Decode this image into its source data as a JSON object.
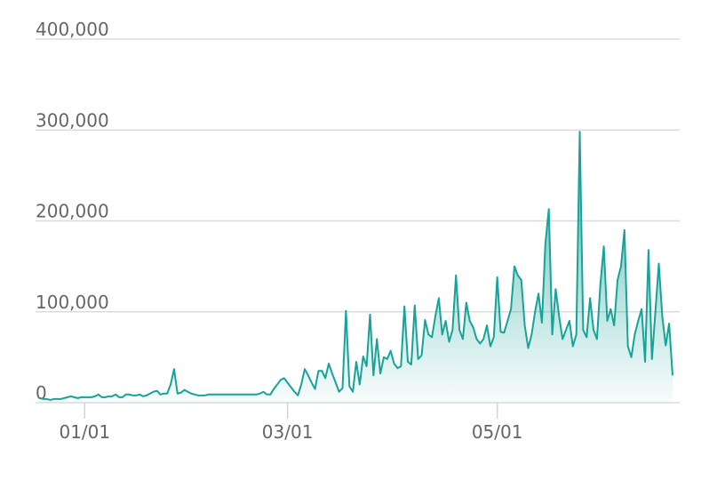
{
  "chart_data": {
    "type": "area",
    "categories": [
      null,
      null,
      null,
      null,
      null,
      null,
      null,
      null,
      null,
      null,
      null,
      null,
      null,
      "01/01",
      null,
      null,
      null,
      null,
      null,
      null,
      null,
      null,
      null,
      null,
      null,
      null,
      null,
      null,
      null,
      null,
      null,
      null,
      null,
      null,
      null,
      null,
      null,
      null,
      null,
      null,
      null,
      null,
      null,
      null,
      null,
      null,
      null,
      null,
      null,
      null,
      null,
      null,
      null,
      null,
      null,
      null,
      null,
      null,
      null,
      null,
      null,
      null,
      null,
      null,
      null,
      null,
      null,
      null,
      null,
      null,
      null,
      null,
      "03/01",
      null,
      null,
      null,
      null,
      null,
      null,
      null,
      null,
      null,
      null,
      null,
      null,
      null,
      null,
      null,
      null,
      null,
      null,
      null,
      null,
      null,
      null,
      null,
      null,
      null,
      null,
      null,
      null,
      null,
      null,
      null,
      null,
      null,
      null,
      null,
      null,
      null,
      null,
      null,
      null,
      null,
      null,
      null,
      null,
      null,
      null,
      null,
      null,
      null,
      null,
      null,
      null,
      null,
      null,
      null,
      null,
      null,
      null,
      null,
      null,
      "05/01",
      null,
      null,
      null,
      null,
      null,
      null,
      null,
      null,
      null,
      null,
      null,
      null,
      null,
      null,
      null,
      null,
      null,
      null,
      null,
      null,
      null,
      null,
      null,
      null,
      null,
      null,
      null,
      null,
      null,
      null,
      null,
      null,
      null,
      null,
      null,
      null,
      null,
      null,
      null,
      null,
      null,
      null,
      null,
      null,
      null,
      null,
      null,
      null,
      null,
      null,
      null
    ],
    "values": [
      5000,
      4000,
      4000,
      3000,
      4000,
      4000,
      4000,
      5000,
      6000,
      7000,
      6000,
      5000,
      6000,
      6000,
      6000,
      6000,
      7000,
      9000,
      6000,
      6000,
      7000,
      7000,
      9000,
      6000,
      6000,
      9000,
      9000,
      8000,
      8000,
      9000,
      7000,
      8000,
      10000,
      12000,
      13000,
      9000,
      10000,
      10000,
      20000,
      37000,
      10000,
      11000,
      14000,
      12000,
      10000,
      9000,
      8000,
      8000,
      8000,
      9000,
      9000,
      9000,
      9000,
      9000,
      9000,
      9000,
      9000,
      9000,
      9000,
      9000,
      9000,
      9000,
      9000,
      9000,
      10000,
      12000,
      9000,
      9000,
      15000,
      20000,
      25000,
      27000,
      22000,
      17000,
      12000,
      8000,
      20000,
      37000,
      30000,
      22000,
      15000,
      35000,
      35000,
      27000,
      43000,
      32000,
      22000,
      12000,
      16000,
      101000,
      18000,
      12000,
      45000,
      20000,
      51000,
      40000,
      97000,
      30000,
      70000,
      32000,
      50000,
      48000,
      57000,
      43000,
      38000,
      40000,
      106000,
      45000,
      42000,
      107000,
      48000,
      52000,
      91000,
      75000,
      72000,
      95000,
      115000,
      75000,
      90000,
      67000,
      80000,
      140000,
      80000,
      70000,
      110000,
      90000,
      83000,
      70000,
      65000,
      70000,
      85000,
      62000,
      72000,
      138000,
      78000,
      77000,
      90000,
      103000,
      150000,
      140000,
      135000,
      85000,
      60000,
      75000,
      100000,
      120000,
      88000,
      175000,
      213000,
      75000,
      125000,
      95000,
      70000,
      80000,
      90000,
      62000,
      75000,
      298000,
      80000,
      72000,
      115000,
      80000,
      70000,
      130000,
      172000,
      90000,
      103000,
      85000,
      135000,
      150000,
      190000,
      62000,
      50000,
      75000,
      90000,
      103000,
      45000,
      168000,
      48000,
      100000,
      153000,
      95000,
      63000,
      87000,
      30000
    ],
    "color": "#17a398",
    "ylim": [
      0,
      400000
    ],
    "yticks": [
      0,
      {
        "value": 100000,
        "label": "100,000"
      },
      {
        "value": 200000,
        "label": "200,000"
      },
      {
        "value": 300000,
        "label": "300,000"
      },
      {
        "value": 400000,
        "label": "400,000"
      }
    ],
    "grid": true
  }
}
